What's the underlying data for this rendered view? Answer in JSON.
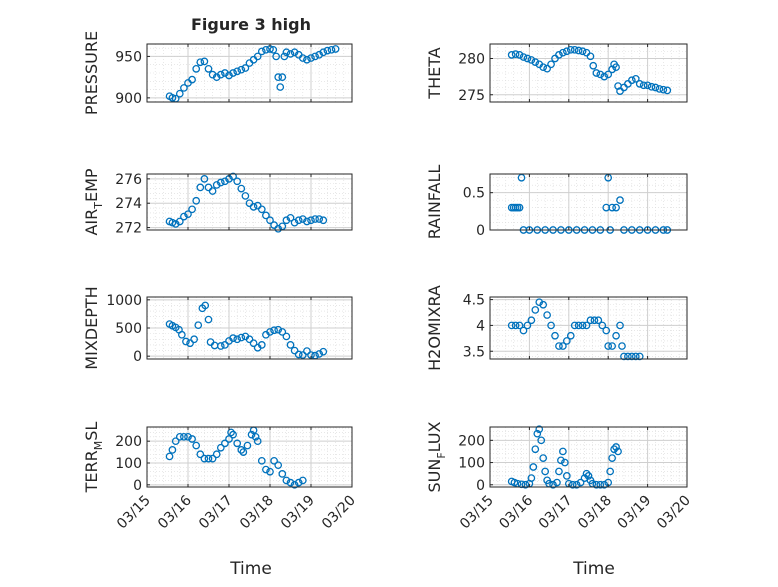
{
  "figure": {
    "title": "Figure 3 high"
  },
  "colors": {
    "marker": "#0072BD",
    "axis": "#262626",
    "grid": "#d9d9d9",
    "background": "#ffffff"
  },
  "x_axis": {
    "label": "Time",
    "ticks": [
      {
        "day": 15,
        "label": "03/15"
      },
      {
        "day": 16,
        "label": "03/16"
      },
      {
        "day": 17,
        "label": "03/17"
      },
      {
        "day": 18,
        "label": "03/18"
      },
      {
        "day": 19,
        "label": "03/19"
      },
      {
        "day": 20,
        "label": "03/20"
      }
    ],
    "range_days": [
      15,
      20
    ]
  },
  "chart_data": [
    {
      "type": "scatter",
      "ylabel": "PRESSURE",
      "title": "Figure 3 high",
      "ylim": [
        895,
        965
      ],
      "yticks": [
        900,
        950
      ],
      "grid": true,
      "points": [
        [
          15.55,
          902
        ],
        [
          15.62,
          900
        ],
        [
          15.7,
          899
        ],
        [
          15.8,
          905
        ],
        [
          15.9,
          912
        ],
        [
          16.0,
          918
        ],
        [
          16.1,
          922
        ],
        [
          16.2,
          935
        ],
        [
          16.3,
          943
        ],
        [
          16.4,
          944
        ],
        [
          16.5,
          935
        ],
        [
          16.6,
          928
        ],
        [
          16.7,
          925
        ],
        [
          16.8,
          928
        ],
        [
          16.9,
          930
        ],
        [
          17.0,
          927
        ],
        [
          17.1,
          930
        ],
        [
          17.2,
          932
        ],
        [
          17.3,
          934
        ],
        [
          17.4,
          936
        ],
        [
          17.5,
          942
        ],
        [
          17.6,
          946
        ],
        [
          17.7,
          950
        ],
        [
          17.8,
          956
        ],
        [
          17.9,
          958
        ],
        [
          18.0,
          959
        ],
        [
          18.08,
          958
        ],
        [
          18.15,
          950
        ],
        [
          18.2,
          925
        ],
        [
          18.25,
          913
        ],
        [
          18.3,
          925
        ],
        [
          18.35,
          950
        ],
        [
          18.4,
          955
        ],
        [
          18.5,
          953
        ],
        [
          18.6,
          955
        ],
        [
          18.7,
          952
        ],
        [
          18.8,
          948
        ],
        [
          18.9,
          946
        ],
        [
          19.0,
          948
        ],
        [
          19.1,
          950
        ],
        [
          19.2,
          952
        ],
        [
          19.3,
          955
        ],
        [
          19.4,
          957
        ],
        [
          19.5,
          958
        ],
        [
          19.6,
          959
        ]
      ]
    },
    {
      "type": "scatter",
      "ylabel": "THETA",
      "ylim": [
        274,
        282
      ],
      "yticks": [
        275,
        280
      ],
      "grid": true,
      "points": [
        [
          15.55,
          280.5
        ],
        [
          15.65,
          280.6
        ],
        [
          15.75,
          280.5
        ],
        [
          15.85,
          280.2
        ],
        [
          15.95,
          280.0
        ],
        [
          16.05,
          279.8
        ],
        [
          16.15,
          279.5
        ],
        [
          16.25,
          279.2
        ],
        [
          16.35,
          278.8
        ],
        [
          16.45,
          278.6
        ],
        [
          16.55,
          279.2
        ],
        [
          16.65,
          280.0
        ],
        [
          16.75,
          280.5
        ],
        [
          16.85,
          280.8
        ],
        [
          16.95,
          281.0
        ],
        [
          17.05,
          281.2
        ],
        [
          17.15,
          281.2
        ],
        [
          17.25,
          281.1
        ],
        [
          17.35,
          281.0
        ],
        [
          17.45,
          280.8
        ],
        [
          17.55,
          280.3
        ],
        [
          17.62,
          279.0
        ],
        [
          17.7,
          278.0
        ],
        [
          17.8,
          277.8
        ],
        [
          17.9,
          277.5
        ],
        [
          18.0,
          277.8
        ],
        [
          18.1,
          278.5
        ],
        [
          18.15,
          279.2
        ],
        [
          18.2,
          278.8
        ],
        [
          18.25,
          276.2
        ],
        [
          18.3,
          275.5
        ],
        [
          18.4,
          276.0
        ],
        [
          18.5,
          276.5
        ],
        [
          18.6,
          277.0
        ],
        [
          18.7,
          277.2
        ],
        [
          18.8,
          276.5
        ],
        [
          18.9,
          276.3
        ],
        [
          19.0,
          276.3
        ],
        [
          19.1,
          276.1
        ],
        [
          19.2,
          276.0
        ],
        [
          19.3,
          275.8
        ],
        [
          19.4,
          275.7
        ],
        [
          19.5,
          275.6
        ]
      ]
    },
    {
      "type": "scatter",
      "ylabel": "AIR_TEMP",
      "ylim": [
        271.8,
        276.4
      ],
      "yticks": [
        272,
        274,
        276
      ],
      "grid": true,
      "points": [
        [
          15.55,
          272.5
        ],
        [
          15.62,
          272.4
        ],
        [
          15.7,
          272.3
        ],
        [
          15.8,
          272.5
        ],
        [
          15.9,
          272.9
        ],
        [
          16.0,
          273.1
        ],
        [
          16.1,
          273.5
        ],
        [
          16.2,
          274.2
        ],
        [
          16.3,
          275.3
        ],
        [
          16.4,
          276.0
        ],
        [
          16.5,
          275.3
        ],
        [
          16.6,
          275.0
        ],
        [
          16.7,
          275.5
        ],
        [
          16.8,
          275.7
        ],
        [
          16.9,
          275.8
        ],
        [
          17.0,
          276.0
        ],
        [
          17.1,
          276.2
        ],
        [
          17.2,
          275.8
        ],
        [
          17.3,
          275.2
        ],
        [
          17.4,
          274.6
        ],
        [
          17.5,
          274.0
        ],
        [
          17.6,
          273.7
        ],
        [
          17.7,
          273.8
        ],
        [
          17.8,
          273.5
        ],
        [
          17.9,
          273.0
        ],
        [
          18.0,
          272.6
        ],
        [
          18.1,
          272.2
        ],
        [
          18.2,
          271.9
        ],
        [
          18.3,
          272.1
        ],
        [
          18.4,
          272.6
        ],
        [
          18.5,
          272.8
        ],
        [
          18.6,
          272.4
        ],
        [
          18.7,
          272.6
        ],
        [
          18.8,
          272.7
        ],
        [
          18.9,
          272.5
        ],
        [
          19.0,
          272.6
        ],
        [
          19.1,
          272.7
        ],
        [
          19.2,
          272.7
        ],
        [
          19.3,
          272.6
        ]
      ]
    },
    {
      "type": "scatter",
      "ylabel": "RAINFALL",
      "ylim": [
        0,
        0.75
      ],
      "yticks": [
        0,
        0.5
      ],
      "grid": true,
      "points": [
        [
          15.55,
          0.3
        ],
        [
          15.6,
          0.3
        ],
        [
          15.65,
          0.3
        ],
        [
          15.7,
          0.3
        ],
        [
          15.75,
          0.3
        ],
        [
          15.8,
          0.7
        ],
        [
          15.85,
          0
        ],
        [
          16.0,
          0
        ],
        [
          16.2,
          0
        ],
        [
          16.4,
          0
        ],
        [
          16.6,
          0
        ],
        [
          16.8,
          0
        ],
        [
          17.0,
          0
        ],
        [
          17.2,
          0
        ],
        [
          17.4,
          0
        ],
        [
          17.6,
          0
        ],
        [
          17.8,
          0
        ],
        [
          17.95,
          0.3
        ],
        [
          18.0,
          0.7
        ],
        [
          18.05,
          0
        ],
        [
          18.1,
          0.3
        ],
        [
          18.2,
          0.3
        ],
        [
          18.3,
          0.4
        ],
        [
          18.4,
          0
        ],
        [
          18.6,
          0
        ],
        [
          18.8,
          0
        ],
        [
          19.0,
          0
        ],
        [
          19.2,
          0
        ],
        [
          19.4,
          0
        ],
        [
          19.5,
          0
        ]
      ]
    },
    {
      "type": "scatter",
      "ylabel": "MIXDEPTH",
      "ylim": [
        -50,
        1050
      ],
      "yticks": [
        0,
        500,
        1000
      ],
      "grid": true,
      "points": [
        [
          15.55,
          570
        ],
        [
          15.62,
          540
        ],
        [
          15.7,
          510
        ],
        [
          15.78,
          470
        ],
        [
          15.85,
          380
        ],
        [
          15.95,
          260
        ],
        [
          16.05,
          230
        ],
        [
          16.15,
          300
        ],
        [
          16.25,
          550
        ],
        [
          16.35,
          850
        ],
        [
          16.42,
          900
        ],
        [
          16.5,
          650
        ],
        [
          16.55,
          250
        ],
        [
          16.65,
          190
        ],
        [
          16.8,
          180
        ],
        [
          16.9,
          200
        ],
        [
          17.0,
          270
        ],
        [
          17.1,
          320
        ],
        [
          17.2,
          300
        ],
        [
          17.3,
          330
        ],
        [
          17.4,
          350
        ],
        [
          17.5,
          300
        ],
        [
          17.6,
          230
        ],
        [
          17.7,
          150
        ],
        [
          17.8,
          200
        ],
        [
          17.9,
          380
        ],
        [
          18.0,
          430
        ],
        [
          18.1,
          460
        ],
        [
          18.2,
          470
        ],
        [
          18.3,
          430
        ],
        [
          18.4,
          350
        ],
        [
          18.5,
          200
        ],
        [
          18.6,
          100
        ],
        [
          18.7,
          30
        ],
        [
          18.8,
          20
        ],
        [
          18.9,
          90
        ],
        [
          19.0,
          20
        ],
        [
          19.1,
          10
        ],
        [
          19.2,
          40
        ],
        [
          19.3,
          80
        ]
      ]
    },
    {
      "type": "scatter",
      "ylabel": "H2OMIXRA",
      "ylim": [
        3.35,
        4.55
      ],
      "yticks": [
        3.5,
        4,
        4.5
      ],
      "grid": true,
      "points": [
        [
          15.55,
          4.0
        ],
        [
          15.65,
          4.0
        ],
        [
          15.75,
          4.0
        ],
        [
          15.85,
          3.9
        ],
        [
          15.95,
          4.0
        ],
        [
          16.05,
          4.1
        ],
        [
          16.15,
          4.3
        ],
        [
          16.25,
          4.45
        ],
        [
          16.35,
          4.4
        ],
        [
          16.45,
          4.2
        ],
        [
          16.55,
          4.0
        ],
        [
          16.65,
          3.8
        ],
        [
          16.75,
          3.6
        ],
        [
          16.85,
          3.6
        ],
        [
          16.95,
          3.7
        ],
        [
          17.05,
          3.8
        ],
        [
          17.15,
          4.0
        ],
        [
          17.25,
          4.0
        ],
        [
          17.35,
          4.0
        ],
        [
          17.45,
          4.0
        ],
        [
          17.55,
          4.1
        ],
        [
          17.65,
          4.1
        ],
        [
          17.75,
          4.1
        ],
        [
          17.85,
          4.0
        ],
        [
          17.95,
          3.9
        ],
        [
          18.0,
          3.6
        ],
        [
          18.1,
          3.6
        ],
        [
          18.2,
          3.8
        ],
        [
          18.3,
          4.0
        ],
        [
          18.35,
          3.6
        ],
        [
          18.4,
          3.4
        ],
        [
          18.5,
          3.4
        ],
        [
          18.6,
          3.4
        ],
        [
          18.7,
          3.4
        ],
        [
          18.8,
          3.4
        ]
      ]
    },
    {
      "type": "scatter",
      "ylabel": "TERR_MSL",
      "ylim": [
        -10,
        265
      ],
      "yticks": [
        0,
        100,
        200
      ],
      "grid": true,
      "points": [
        [
          15.55,
          130
        ],
        [
          15.62,
          160
        ],
        [
          15.7,
          200
        ],
        [
          15.8,
          220
        ],
        [
          15.9,
          220
        ],
        [
          16.0,
          220
        ],
        [
          16.1,
          210
        ],
        [
          16.2,
          180
        ],
        [
          16.3,
          140
        ],
        [
          16.4,
          120
        ],
        [
          16.5,
          120
        ],
        [
          16.6,
          120
        ],
        [
          16.7,
          140
        ],
        [
          16.8,
          170
        ],
        [
          16.9,
          190
        ],
        [
          17.0,
          210
        ],
        [
          17.05,
          240
        ],
        [
          17.1,
          230
        ],
        [
          17.2,
          190
        ],
        [
          17.3,
          160
        ],
        [
          17.35,
          150
        ],
        [
          17.45,
          180
        ],
        [
          17.55,
          230
        ],
        [
          17.6,
          250
        ],
        [
          17.65,
          220
        ],
        [
          17.7,
          200
        ],
        [
          17.8,
          110
        ],
        [
          17.9,
          70
        ],
        [
          18.0,
          60
        ],
        [
          18.1,
          110
        ],
        [
          18.2,
          90
        ],
        [
          18.3,
          50
        ],
        [
          18.4,
          20
        ],
        [
          18.5,
          10
        ],
        [
          18.6,
          0
        ],
        [
          18.7,
          10
        ],
        [
          18.8,
          20
        ]
      ]
    },
    {
      "type": "scatter",
      "ylabel": "SUN_FLUX",
      "ylim": [
        -10,
        260
      ],
      "yticks": [
        0,
        100,
        200
      ],
      "grid": true,
      "points": [
        [
          15.55,
          15
        ],
        [
          15.62,
          10
        ],
        [
          15.7,
          5
        ],
        [
          15.8,
          2
        ],
        [
          15.9,
          0
        ],
        [
          16.0,
          5
        ],
        [
          16.05,
          30
        ],
        [
          16.1,
          80
        ],
        [
          16.15,
          160
        ],
        [
          16.2,
          230
        ],
        [
          16.25,
          250
        ],
        [
          16.3,
          200
        ],
        [
          16.35,
          120
        ],
        [
          16.4,
          60
        ],
        [
          16.45,
          20
        ],
        [
          16.5,
          5
        ],
        [
          16.6,
          0
        ],
        [
          16.7,
          10
        ],
        [
          16.75,
          60
        ],
        [
          16.8,
          110
        ],
        [
          16.85,
          150
        ],
        [
          16.9,
          100
        ],
        [
          16.95,
          40
        ],
        [
          17.0,
          5
        ],
        [
          17.1,
          0
        ],
        [
          17.2,
          0
        ],
        [
          17.3,
          10
        ],
        [
          17.4,
          30
        ],
        [
          17.45,
          50
        ],
        [
          17.5,
          40
        ],
        [
          17.55,
          20
        ],
        [
          17.6,
          5
        ],
        [
          17.7,
          0
        ],
        [
          17.8,
          0
        ],
        [
          17.9,
          0
        ],
        [
          18.0,
          10
        ],
        [
          18.05,
          60
        ],
        [
          18.1,
          120
        ],
        [
          18.15,
          160
        ],
        [
          18.2,
          170
        ],
        [
          18.25,
          150
        ]
      ]
    }
  ]
}
